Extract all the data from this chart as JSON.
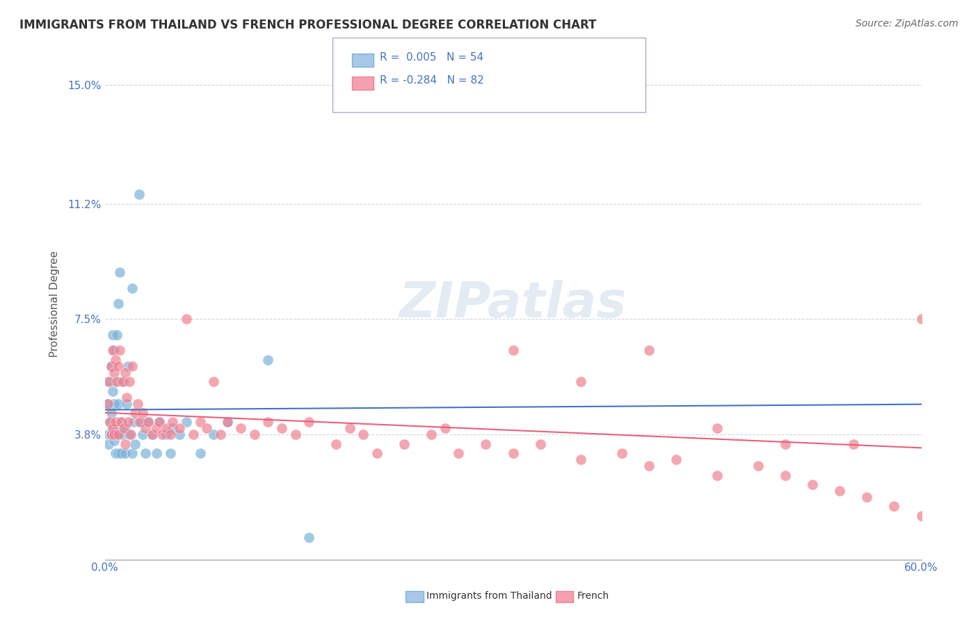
{
  "title": "IMMIGRANTS FROM THAILAND VS FRENCH PROFESSIONAL DEGREE CORRELATION CHART",
  "source": "Source: ZipAtlas.com",
  "xlabel": "",
  "ylabel": "Professional Degree",
  "xlim": [
    0.0,
    0.6
  ],
  "ylim": [
    -0.002,
    0.162
  ],
  "yticks": [
    0.038,
    0.075,
    0.112,
    0.15
  ],
  "ytick_labels": [
    "3.8%",
    "7.5%",
    "11.2%",
    "15.0%"
  ],
  "xticks": [
    0.0,
    0.1,
    0.2,
    0.3,
    0.4,
    0.5,
    0.6
  ],
  "xtick_labels": [
    "0.0%",
    "",
    "",
    "",
    "",
    "",
    "60.0%"
  ],
  "legend_entries": [
    {
      "label": "R =  0.005   N = 54",
      "color": "#a8c8e8"
    },
    {
      "label": "R = -0.284   N = 82",
      "color": "#f4a0b0"
    }
  ],
  "watermark": "ZIPatlas",
  "blue_color": "#7ab3d9",
  "pink_color": "#f08090",
  "trend_blue_color": "#4472c4",
  "trend_pink_color": "#e8607a",
  "grid_color": "#d0d8e8",
  "R_blue": 0.005,
  "R_pink": -0.284,
  "N_blue": 54,
  "N_pink": 82,
  "seed": 42,
  "blue_scatter": {
    "x": [
      0.002,
      0.003,
      0.003,
      0.004,
      0.004,
      0.005,
      0.005,
      0.005,
      0.006,
      0.006,
      0.006,
      0.007,
      0.007,
      0.007,
      0.008,
      0.008,
      0.008,
      0.009,
      0.009,
      0.01,
      0.01,
      0.01,
      0.011,
      0.012,
      0.012,
      0.013,
      0.014,
      0.015,
      0.015,
      0.016,
      0.017,
      0.018,
      0.02,
      0.02,
      0.021,
      0.022,
      0.025,
      0.027,
      0.028,
      0.03,
      0.032,
      0.035,
      0.038,
      0.04,
      0.045,
      0.048,
      0.05,
      0.055,
      0.06,
      0.07,
      0.08,
      0.09,
      0.12,
      0.15
    ],
    "y": [
      0.048,
      0.038,
      0.035,
      0.055,
      0.042,
      0.06,
      0.045,
      0.038,
      0.07,
      0.052,
      0.04,
      0.065,
      0.048,
      0.036,
      0.055,
      0.04,
      0.032,
      0.07,
      0.038,
      0.08,
      0.048,
      0.032,
      0.09,
      0.042,
      0.032,
      0.038,
      0.055,
      0.04,
      0.032,
      0.048,
      0.06,
      0.038,
      0.085,
      0.032,
      0.042,
      0.035,
      0.115,
      0.042,
      0.038,
      0.032,
      0.042,
      0.038,
      0.032,
      0.042,
      0.038,
      0.032,
      0.04,
      0.038,
      0.042,
      0.032,
      0.038,
      0.042,
      0.062,
      0.005
    ]
  },
  "pink_scatter": {
    "x": [
      0.002,
      0.003,
      0.004,
      0.005,
      0.005,
      0.006,
      0.006,
      0.007,
      0.007,
      0.008,
      0.008,
      0.009,
      0.01,
      0.01,
      0.011,
      0.012,
      0.013,
      0.014,
      0.015,
      0.015,
      0.016,
      0.017,
      0.018,
      0.019,
      0.02,
      0.022,
      0.024,
      0.026,
      0.028,
      0.03,
      0.032,
      0.035,
      0.038,
      0.04,
      0.042,
      0.045,
      0.048,
      0.05,
      0.055,
      0.06,
      0.065,
      0.07,
      0.075,
      0.08,
      0.085,
      0.09,
      0.1,
      0.11,
      0.12,
      0.13,
      0.14,
      0.15,
      0.17,
      0.18,
      0.19,
      0.2,
      0.22,
      0.24,
      0.26,
      0.28,
      0.3,
      0.32,
      0.35,
      0.38,
      0.4,
      0.42,
      0.45,
      0.48,
      0.5,
      0.52,
      0.54,
      0.56,
      0.58,
      0.6,
      0.3,
      0.35,
      0.4,
      0.45,
      0.5,
      0.55,
      0.6,
      0.25
    ],
    "y": [
      0.048,
      0.055,
      0.042,
      0.06,
      0.038,
      0.065,
      0.04,
      0.058,
      0.038,
      0.062,
      0.042,
      0.055,
      0.06,
      0.038,
      0.065,
      0.042,
      0.055,
      0.04,
      0.058,
      0.035,
      0.05,
      0.042,
      0.055,
      0.038,
      0.06,
      0.045,
      0.048,
      0.042,
      0.045,
      0.04,
      0.042,
      0.038,
      0.04,
      0.042,
      0.038,
      0.04,
      0.038,
      0.042,
      0.04,
      0.075,
      0.038,
      0.042,
      0.04,
      0.055,
      0.038,
      0.042,
      0.04,
      0.038,
      0.042,
      0.04,
      0.038,
      0.042,
      0.035,
      0.04,
      0.038,
      0.032,
      0.035,
      0.038,
      0.032,
      0.035,
      0.032,
      0.035,
      0.03,
      0.032,
      0.028,
      0.03,
      0.025,
      0.028,
      0.025,
      0.022,
      0.02,
      0.018,
      0.015,
      0.012,
      0.065,
      0.055,
      0.065,
      0.04,
      0.035,
      0.035,
      0.075,
      0.04
    ]
  }
}
